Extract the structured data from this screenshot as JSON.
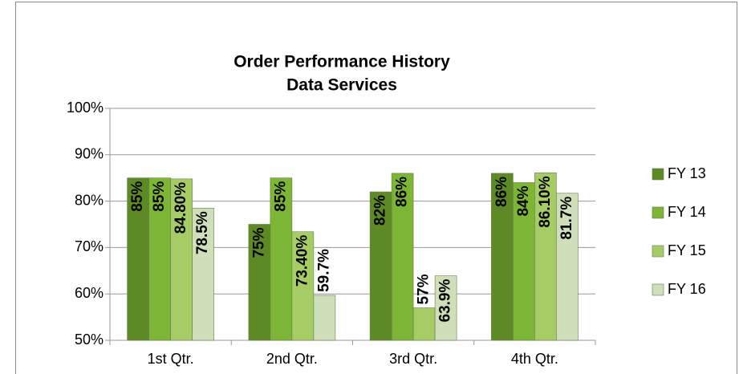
{
  "chart_data": {
    "type": "bar",
    "title": "Order Performance History",
    "subtitle": "Data Services",
    "categories": [
      "1st Qtr.",
      "2nd Qtr.",
      "3rd Qtr.",
      "4th Qtr."
    ],
    "series": [
      {
        "name": "FY 13",
        "color": "#5e8a25",
        "values": [
          85,
          75,
          82,
          86
        ],
        "value_labels": [
          "85%",
          "75%",
          "82%",
          "86%"
        ]
      },
      {
        "name": "FY 14",
        "color": "#7db536",
        "values": [
          85,
          85,
          86,
          84
        ],
        "value_labels": [
          "85%",
          "85%",
          "86%",
          "84%"
        ]
      },
      {
        "name": "FY 15",
        "color": "#a6cc66",
        "values": [
          84.8,
          73.4,
          57,
          86.1
        ],
        "value_labels": [
          "84.80%",
          "73.40%",
          "57%",
          "86.10%"
        ]
      },
      {
        "name": "FY 16",
        "color": "#cfdfba",
        "values": [
          78.5,
          59.7,
          63.9,
          81.7
        ],
        "value_labels": [
          "78.5%",
          "59.7%",
          "63.9%",
          "81.7%"
        ]
      }
    ],
    "ylim": [
      50,
      100
    ],
    "yticks": [
      {
        "value": 50,
        "label": "50%"
      },
      {
        "value": 60,
        "label": "60%"
      },
      {
        "value": 70,
        "label": "70%"
      },
      {
        "value": 80,
        "label": "80%"
      },
      {
        "value": 90,
        "label": "90%"
      },
      {
        "value": 100,
        "label": "100%"
      }
    ],
    "grid": true,
    "legend": "right"
  }
}
